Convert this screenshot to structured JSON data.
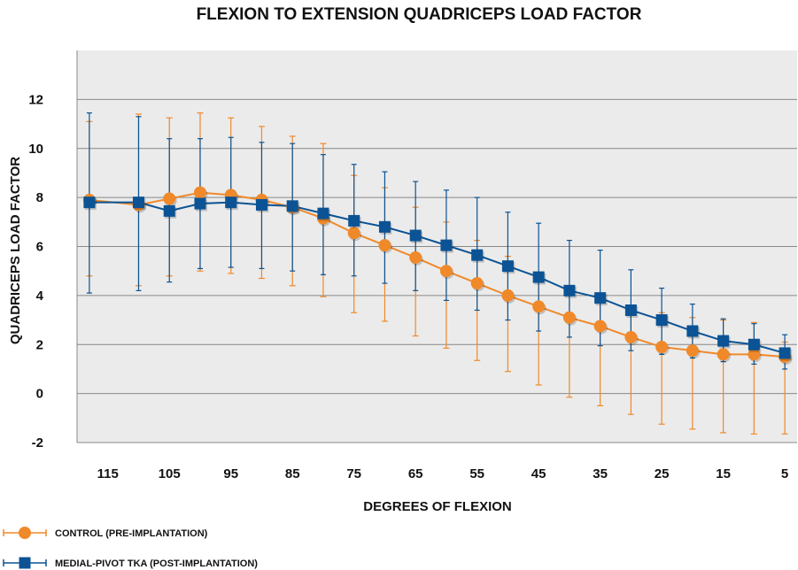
{
  "chart_data": {
    "type": "line",
    "title": "FLEXION TO EXTENSION QUADRICEPS LOAD FACTOR",
    "xlabel": "DEGREES OF FLEXION",
    "ylabel": "QUADRICEPS LOAD FACTOR",
    "x": [
      118,
      110,
      105,
      100,
      95,
      90,
      85,
      80,
      75,
      70,
      65,
      60,
      55,
      50,
      45,
      40,
      35,
      30,
      25,
      20,
      15,
      10,
      5
    ],
    "x_ticks": [
      115,
      105,
      95,
      85,
      75,
      65,
      55,
      45,
      35,
      25,
      15,
      5
    ],
    "x_tick_labels": [
      "115",
      "105",
      "95",
      "85",
      "75",
      "65",
      "55",
      "45",
      "35",
      "25",
      "15",
      "5"
    ],
    "xlim": [
      120,
      3
    ],
    "ylim": [
      -2.0,
      14.0
    ],
    "y_ticks": [
      -2,
      0,
      2,
      4,
      6,
      8,
      10,
      12
    ],
    "y_tick_labels": [
      "-2",
      "0",
      "2",
      "4",
      "6",
      "8",
      "10",
      "12"
    ],
    "grid": true,
    "legend_position": "bottom-left",
    "series": [
      {
        "name": "CONTROL (PRE-IMPLANTATION)",
        "color": "#f0892a",
        "marker": "circle",
        "values": [
          7.9,
          7.7,
          7.95,
          8.2,
          8.1,
          7.9,
          7.6,
          7.15,
          6.55,
          6.05,
          5.55,
          5.0,
          4.5,
          4.0,
          3.55,
          3.1,
          2.75,
          2.3,
          1.9,
          1.75,
          1.6,
          1.6,
          1.5
        ],
        "upper": [
          11.1,
          11.4,
          11.25,
          11.45,
          11.25,
          10.9,
          10.5,
          10.2,
          8.9,
          8.4,
          7.6,
          7.0,
          6.25,
          5.6,
          4.75,
          4.25,
          3.7,
          3.45,
          3.3,
          3.1,
          3.0,
          2.9,
          2.1
        ],
        "lower": [
          4.8,
          4.4,
          4.8,
          5.0,
          4.9,
          4.7,
          4.4,
          3.95,
          3.3,
          2.95,
          2.35,
          1.85,
          1.35,
          0.9,
          0.35,
          -0.15,
          -0.5,
          -0.85,
          -1.25,
          -1.45,
          -1.6,
          -1.65,
          -1.65
        ]
      },
      {
        "name": "MEDIAL-PIVOT TKA (POST-IMPLANTATION)",
        "color": "#0b5394",
        "marker": "square",
        "values": [
          7.8,
          7.8,
          7.45,
          7.75,
          7.8,
          7.7,
          7.65,
          7.35,
          7.05,
          6.8,
          6.45,
          6.05,
          5.65,
          5.2,
          4.75,
          4.2,
          3.9,
          3.4,
          3.0,
          2.55,
          2.15,
          2.0,
          1.65
        ],
        "upper": [
          11.45,
          11.3,
          10.4,
          10.4,
          10.45,
          10.25,
          10.2,
          9.75,
          9.35,
          9.05,
          8.65,
          8.3,
          8.0,
          7.4,
          6.95,
          6.25,
          5.85,
          5.05,
          4.3,
          3.65,
          3.05,
          2.85,
          2.4
        ],
        "lower": [
          4.1,
          4.2,
          4.55,
          5.1,
          5.15,
          5.1,
          5.0,
          4.85,
          4.8,
          4.5,
          4.2,
          3.8,
          3.4,
          3.0,
          2.55,
          2.3,
          1.95,
          1.75,
          1.6,
          1.45,
          1.3,
          1.2,
          1.0
        ]
      }
    ]
  }
}
